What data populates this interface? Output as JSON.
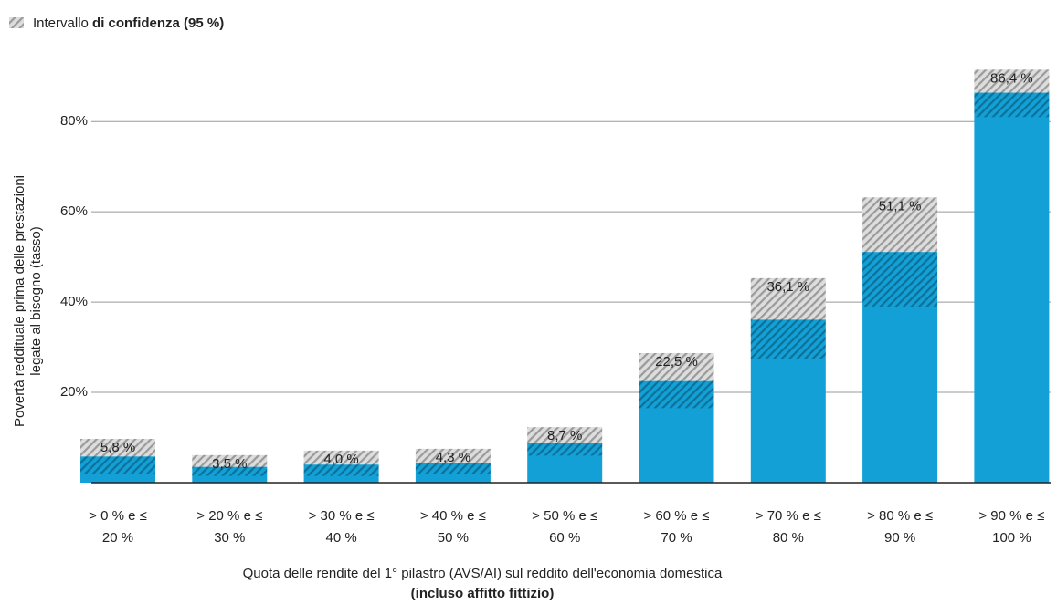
{
  "chart_data": {
    "type": "bar",
    "legend": {
      "label": "Intervallo",
      "label_bold": "di confidenza (95 %)"
    },
    "y_label": [
      "Povertà reddituale prima delle prestazioni",
      "legate al bisogno (tasso)"
    ],
    "x_label": "Quota delle rendite del 1° pilastro (AVS/AI) sul reddito dell'economia domestica",
    "x_label_bold": "(incluso affitto fittizio)",
    "categories": [
      [
        "> 0 % e ≤",
        "20 %"
      ],
      [
        "> 20 % e ≤",
        "30 %"
      ],
      [
        "> 30 % e ≤",
        "40 %"
      ],
      [
        "> 40 % e ≤",
        "50 %"
      ],
      [
        "> 50 % e ≤",
        "60 %"
      ],
      [
        "> 60 % e ≤",
        "70 %"
      ],
      [
        "> 70 % e ≤",
        "80 %"
      ],
      [
        "> 80 % e ≤",
        "90 %"
      ],
      [
        "> 90 % e ≤",
        "100 %"
      ]
    ],
    "values": [
      5.8,
      3.5,
      4.0,
      4.3,
      8.7,
      22.5,
      36.1,
      51.1,
      86.4
    ],
    "value_labels": [
      "5,8 %",
      "3,5 %",
      "4,0 %",
      "4,3 %",
      "8,7 %",
      "22,5 %",
      "36,1 %",
      "51,1 %",
      "86,4 %"
    ],
    "ci_low": [
      2,
      1.5,
      1.5,
      2,
      6,
      16.5,
      27.5,
      39,
      81
    ],
    "ci_high": [
      9.7,
      6.1,
      7.1,
      7.5,
      12.3,
      28.7,
      45.3,
      63.2,
      91.5
    ],
    "color": "#12a0d7",
    "ylim": [
      0,
      95
    ],
    "yticks": [
      {
        "value": 20,
        "label": "20%"
      },
      {
        "value": 40,
        "label": "40%"
      },
      {
        "value": 60,
        "label": "60%"
      },
      {
        "value": 80,
        "label": "80%"
      }
    ],
    "grid": true
  }
}
